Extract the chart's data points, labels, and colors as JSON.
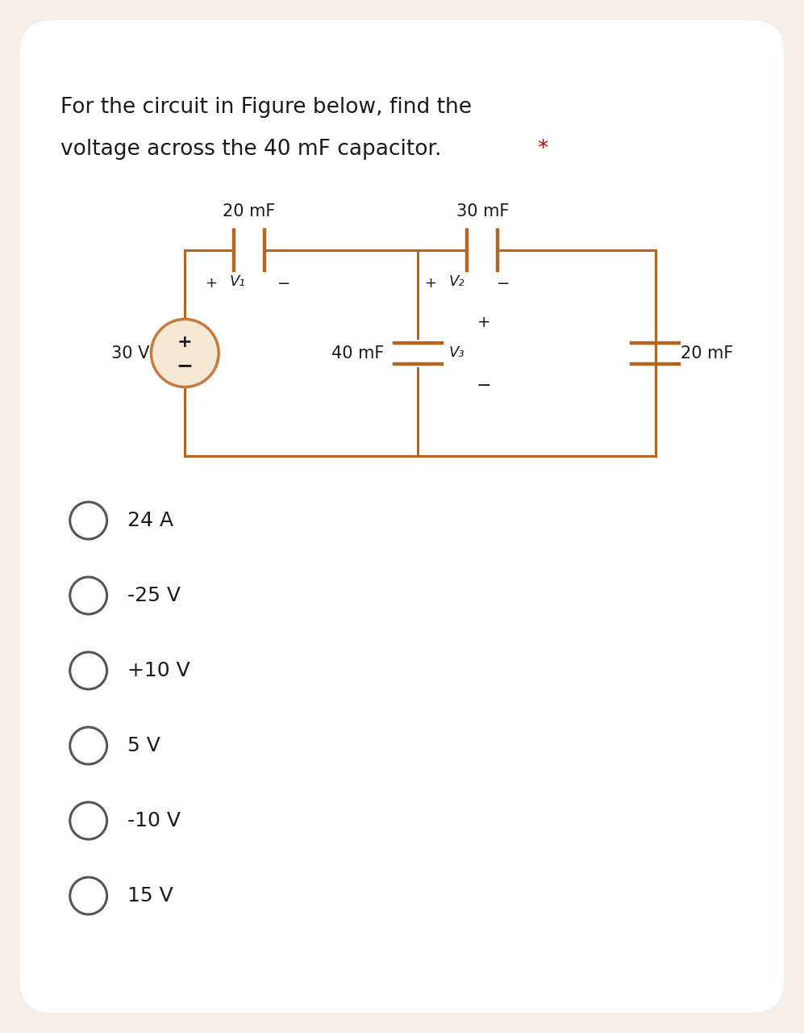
{
  "title_line1": "For the circuit in Figure below, find the",
  "title_line2": "voltage across the 40 mF capacitor.",
  "title_star": "*",
  "bg_outer": "#f5ede8",
  "bg_card": "#ffffff",
  "circuit_color": "#b5651d",
  "text_color": "#1a1a1a",
  "options": [
    "24 A",
    "-25 V",
    "+10 V",
    "5 V",
    "-10 V",
    "15 V"
  ],
  "source_color": "#c8783c"
}
